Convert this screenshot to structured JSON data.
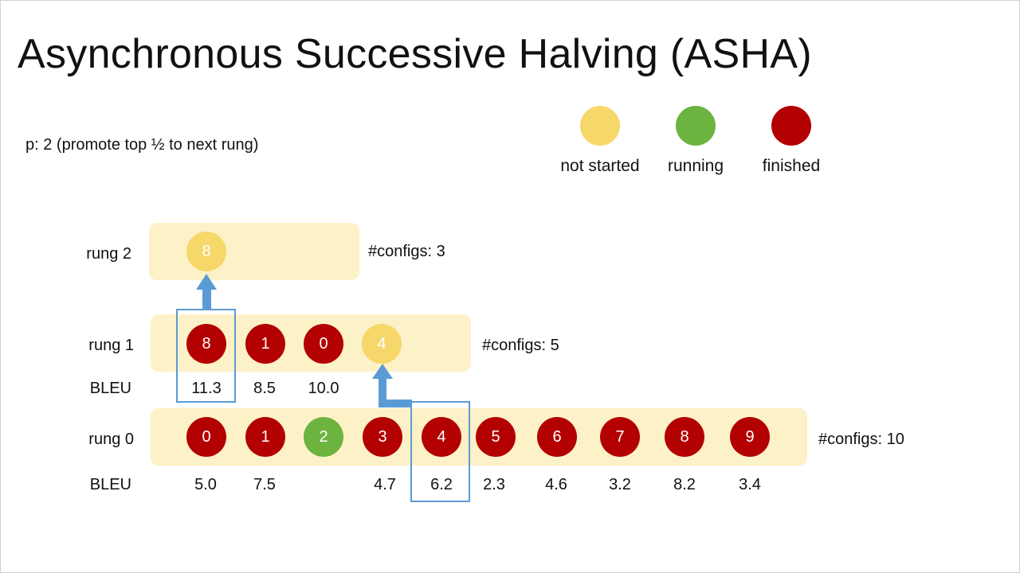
{
  "title": "Asynchronous Successive Halving (ASHA)",
  "note": "p: 2 (promote top ½ to next rung)",
  "legend": [
    {
      "label": "not started",
      "color": "#f6d76a"
    },
    {
      "label": "running",
      "color": "#6db33f"
    },
    {
      "label": "finished",
      "color": "#b30000"
    }
  ],
  "score_label": "BLEU",
  "rungs": {
    "rung2": {
      "label": "rung 2",
      "configs": "#configs: 3",
      "nodes": [
        {
          "id": "8",
          "status": "not-started"
        }
      ]
    },
    "rung1": {
      "label": "rung 1",
      "configs": "#configs: 5",
      "nodes": [
        {
          "id": "8",
          "status": "finished",
          "bleu": "11.3"
        },
        {
          "id": "1",
          "status": "finished",
          "bleu": "8.5"
        },
        {
          "id": "0",
          "status": "finished",
          "bleu": "10.0"
        },
        {
          "id": "4",
          "status": "not-started"
        }
      ]
    },
    "rung0": {
      "label": "rung 0",
      "configs": "#configs: 10",
      "nodes": [
        {
          "id": "0",
          "status": "finished",
          "bleu": "5.0"
        },
        {
          "id": "1",
          "status": "finished",
          "bleu": "7.5"
        },
        {
          "id": "2",
          "status": "running"
        },
        {
          "id": "3",
          "status": "finished",
          "bleu": "4.7"
        },
        {
          "id": "4",
          "status": "finished",
          "bleu": "6.2"
        },
        {
          "id": "5",
          "status": "finished",
          "bleu": "2.3"
        },
        {
          "id": "6",
          "status": "finished",
          "bleu": "4.6"
        },
        {
          "id": "7",
          "status": "finished",
          "bleu": "3.2"
        },
        {
          "id": "8",
          "status": "finished",
          "bleu": "8.2"
        },
        {
          "id": "9",
          "status": "finished",
          "bleu": "3.4"
        }
      ]
    }
  }
}
